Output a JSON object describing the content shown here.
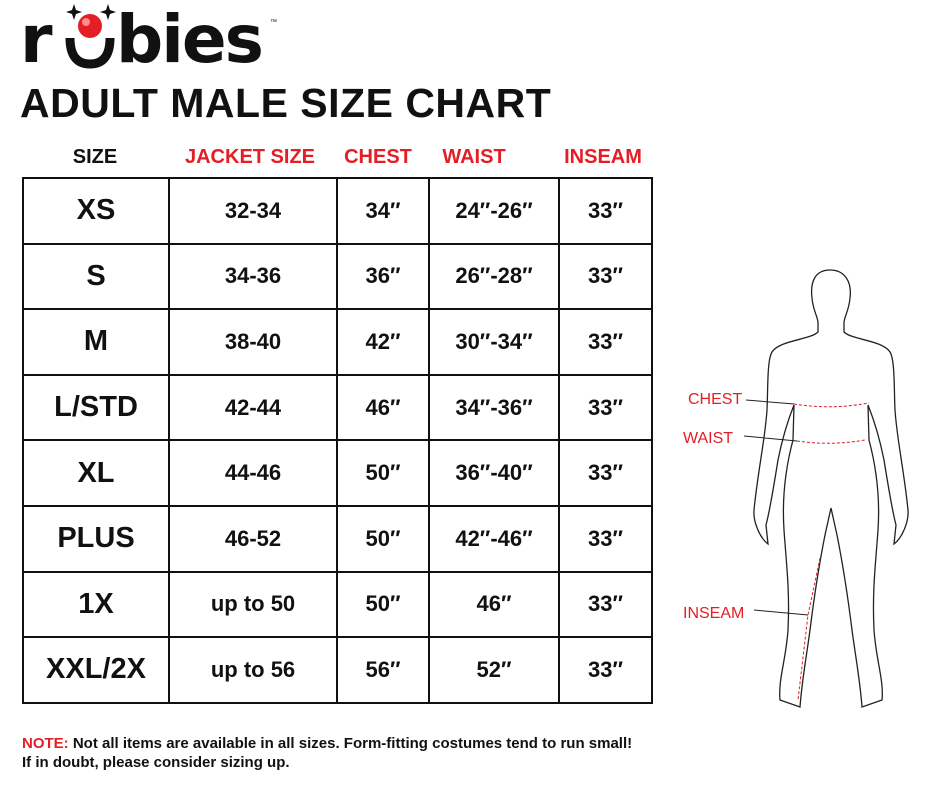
{
  "brand": {
    "logo_text": "rubies"
  },
  "title": "ADULT MALE SIZE CHART",
  "colors": {
    "accent": "#e31e24",
    "text": "#111111"
  },
  "table": {
    "headers": [
      "SIZE",
      "JACKET SIZE",
      "CHEST",
      "WAIST",
      "INSEAM"
    ],
    "rows": [
      [
        "XS",
        "32-34",
        "34″",
        "24″-26″",
        "33″"
      ],
      [
        "S",
        "34-36",
        "36″",
        "26″-28″",
        "33″"
      ],
      [
        "M",
        "38-40",
        "42″",
        "30″-34″",
        "33″"
      ],
      [
        "L/STD",
        "42-44",
        "46″",
        "34″-36″",
        "33″"
      ],
      [
        "XL",
        "44-46",
        "50″",
        "36″-40″",
        "33″"
      ],
      [
        "PLUS",
        "46-52",
        "50″",
        "42″-46″",
        "33″"
      ],
      [
        "1X",
        "up to 50",
        "50″",
        "46″",
        "33″"
      ],
      [
        "XXL/2X",
        "up to 56",
        "56″",
        "52″",
        "33″"
      ]
    ]
  },
  "note": {
    "label": "NOTE:",
    "line1": " Not all items are available in all sizes. Form-fitting costumes tend to run small!",
    "line2": "If in doubt, please consider sizing up."
  },
  "figure": {
    "labels": {
      "chest": "CHEST",
      "waist": "WAIST",
      "inseam": "INSEAM"
    }
  }
}
